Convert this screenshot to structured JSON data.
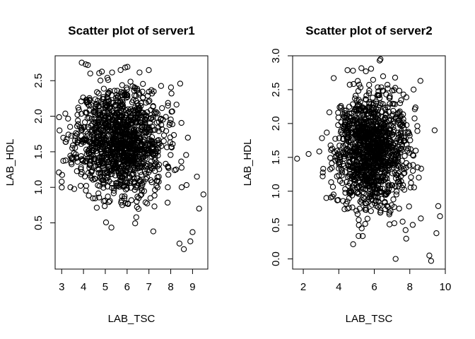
{
  "chart_data": [
    {
      "type": "scatter",
      "title": "Scatter plot of server1",
      "xlabel": "LAB_TSC",
      "ylabel": "LAB_HDL",
      "xlim": [
        2.7,
        9.7
      ],
      "ylim": [
        -0.15,
        2.85
      ],
      "xticks": [
        3,
        4,
        5,
        6,
        7,
        8,
        9
      ],
      "yticks": [
        0.5,
        1.0,
        1.5,
        2.0,
        2.5
      ],
      "xtick_labels": [
        "3",
        "4",
        "5",
        "6",
        "7",
        "8",
        "9"
      ],
      "ytick_labels": [
        "0.5",
        "1.0",
        "1.5",
        "2.0",
        "2.5"
      ],
      "cloud": {
        "n": 1300,
        "x_mean": 5.7,
        "x_sd": 1.0,
        "y_mean": 1.65,
        "y_sd": 0.38,
        "seed": 11
      },
      "points": [
        [
          4.1,
          2.73
        ],
        [
          4.2,
          2.72
        ],
        [
          5.7,
          2.65
        ],
        [
          8.6,
          0.13
        ],
        [
          9.0,
          0.37
        ],
        [
          8.9,
          0.24
        ],
        [
          9.5,
          0.9
        ],
        [
          9.2,
          1.15
        ],
        [
          8.5,
          1.0
        ],
        [
          9.3,
          0.7
        ],
        [
          2.9,
          1.8
        ],
        [
          3.0,
          1.08
        ],
        [
          3.4,
          1.0
        ],
        [
          8.4,
          0.21
        ],
        [
          7.2,
          0.38
        ]
      ]
    },
    {
      "type": "scatter",
      "title": "Scatter plot of server2",
      "xlabel": "LAB_TSC",
      "ylabel": "LAB_HDL",
      "xlim": [
        1.4,
        10.0
      ],
      "ylim": [
        -0.15,
        3.0
      ],
      "xticks": [
        2,
        4,
        6,
        8,
        10
      ],
      "yticks": [
        0.0,
        0.5,
        1.0,
        1.5,
        2.0,
        2.5,
        3.0
      ],
      "xtick_labels": [
        "2",
        "4",
        "6",
        "8",
        "10"
      ],
      "ytick_labels": [
        "0.0",
        "0.5",
        "1.0",
        "1.5",
        "2.0",
        "2.5",
        "3.0"
      ],
      "cloud": {
        "n": 1300,
        "x_mean": 5.8,
        "x_sd": 1.0,
        "y_mean": 1.6,
        "y_sd": 0.42,
        "seed": 29
      },
      "points": [
        [
          1.65,
          1.48
        ],
        [
          2.3,
          1.55
        ],
        [
          6.35,
          2.95
        ],
        [
          6.3,
          2.93
        ],
        [
          9.2,
          -0.03
        ],
        [
          9.1,
          0.05
        ],
        [
          9.6,
          0.78
        ],
        [
          9.7,
          0.63
        ],
        [
          9.5,
          0.38
        ],
        [
          9.4,
          1.9
        ],
        [
          7.2,
          0.0
        ],
        [
          7.8,
          0.3
        ],
        [
          8.6,
          2.63
        ],
        [
          4.8,
          2.78
        ],
        [
          3.3,
          0.9
        ]
      ]
    }
  ]
}
